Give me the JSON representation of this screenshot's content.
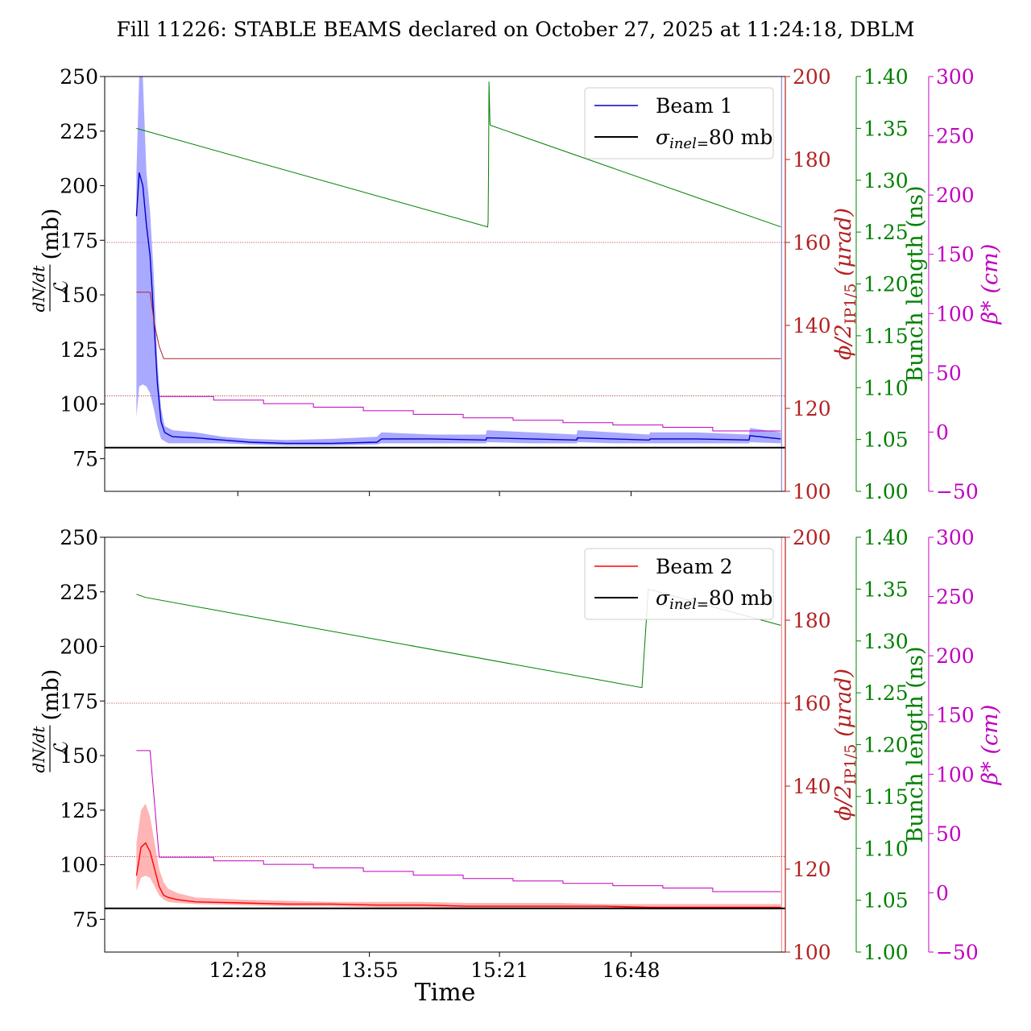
{
  "title": "Fill 11226: STABLE BEAMS declared on October 27, 2025 at 11:24:18, DBLM",
  "colors": {
    "beam1": "#0000cc",
    "beam1_band": "#8c8cff",
    "beam2": "#ff0000",
    "beam2_band": "#ff9c9c",
    "phi": "#b22222",
    "bunch": "#008000",
    "beta": "#c000c0",
    "sigma": "#000000"
  },
  "chart_data": [
    {
      "type": "line",
      "panel": "top",
      "ylabel_main": "(mb)",
      "ylabel_num": "dN/dt",
      "ylabel_den": "ℒ",
      "ylim": [
        60,
        250
      ],
      "yticks": [
        "75",
        "100",
        "125",
        "150",
        "175",
        "200",
        "225",
        "250"
      ],
      "x_range_hours": [
        11.0,
        18.5
      ],
      "xticks": [
        {
          "t": 12.4667,
          "label": ""
        },
        {
          "t": 13.9167,
          "label": ""
        },
        {
          "t": 15.35,
          "label": ""
        },
        {
          "t": 16.8,
          "label": ""
        }
      ],
      "axes": [
        {
          "key": "phi",
          "label_main": "ϕ/2",
          "label_sub": "IP1/5",
          "label_tail": " (μrad)",
          "ylim": [
            100,
            200
          ],
          "ticks": [
            "100",
            "120",
            "140",
            "160",
            "180",
            "200"
          ]
        },
        {
          "key": "bunch",
          "label": "Bunch length (ns)",
          "ylim": [
            1.0,
            1.4
          ],
          "ticks": [
            "1.00",
            "1.05",
            "1.10",
            "1.15",
            "1.20",
            "1.25",
            "1.30",
            "1.35",
            "1.40"
          ]
        },
        {
          "key": "beta",
          "label": "β* (cm)",
          "ylim": [
            -50,
            300
          ],
          "ticks": [
            "−50",
            "0",
            "50",
            "100",
            "150",
            "200",
            "250",
            "300"
          ]
        }
      ],
      "legend": [
        "Beam 1",
        "σinel=80 mb"
      ],
      "sigma_inel": 80,
      "phi_ref_lines": [
        160,
        123
      ],
      "series": [
        {
          "name": "Beam 1",
          "axis": "main",
          "role": "beam",
          "x": [
            11.35,
            11.38,
            11.42,
            11.46,
            11.5,
            11.54,
            11.58,
            11.62,
            11.66,
            11.7,
            11.75,
            12.0,
            12.3,
            12.6,
            13.0,
            13.5,
            14.0,
            14.05,
            14.6,
            15.2,
            15.21,
            15.7,
            16.2,
            16.21,
            16.6,
            17.0,
            17.01,
            17.5,
            18.1,
            18.11,
            18.45
          ],
          "values": [
            186,
            206,
            200,
            182,
            168,
            140,
            110,
            92,
            87,
            86,
            85,
            84.5,
            83.5,
            82.5,
            82,
            82,
            82.5,
            84,
            84,
            83.5,
            84.5,
            84,
            83.5,
            84.5,
            84,
            83.5,
            84,
            84,
            83.5,
            85.5,
            84
          ],
          "band_up": [
            206,
            250,
            250,
            206,
            188,
            160,
            120,
            98,
            90,
            89,
            88,
            87,
            85,
            84,
            83.5,
            84,
            85,
            87,
            86,
            86,
            88,
            87,
            86,
            88,
            87,
            86,
            87,
            87,
            86,
            89,
            87
          ],
          "band_lo": [
            94,
            108,
            109,
            108,
            105,
            98,
            90,
            84,
            83,
            82,
            82,
            82,
            82,
            81.5,
            81,
            81,
            81.5,
            82,
            82,
            82,
            82.5,
            82,
            82,
            82.5,
            82,
            82,
            82,
            82,
            82,
            82.5,
            82
          ]
        },
        {
          "name": "",
          "axis": "bunch",
          "role": "line",
          "x": [
            11.35,
            15.22,
            15.225,
            15.23,
            15.235,
            15.245,
            15.25,
            18.45
          ],
          "values": [
            1.35,
            1.255,
            1.26,
            1.315,
            1.395,
            1.355,
            1.353,
            1.255
          ]
        },
        {
          "name": "",
          "axis": "phi",
          "role": "line",
          "x": [
            11.35,
            11.5,
            11.55,
            11.6,
            11.65,
            18.45
          ],
          "values": [
            148,
            148,
            140,
            135,
            132,
            132
          ]
        },
        {
          "name": "",
          "axis": "beta",
          "role": "step",
          "x": [
            11.6,
            12.2,
            12.2,
            12.75,
            12.75,
            13.3,
            13.3,
            13.85,
            13.85,
            14.4,
            14.4,
            14.95,
            14.95,
            15.5,
            15.5,
            16.05,
            16.05,
            16.6,
            16.6,
            17.15,
            17.15,
            17.7,
            17.7,
            18.45
          ],
          "values": [
            30,
            30,
            27,
            27,
            24,
            24,
            21,
            21,
            18,
            18,
            15,
            15,
            12,
            12,
            10,
            10,
            8,
            8,
            6,
            6,
            4,
            4,
            1,
            1
          ]
        }
      ]
    },
    {
      "type": "line",
      "panel": "bottom",
      "ylabel_main": "(mb)",
      "ylabel_num": "dN/dt",
      "ylabel_den": "ℒ",
      "ylim": [
        60,
        250
      ],
      "yticks": [
        "75",
        "100",
        "125",
        "150",
        "175",
        "200",
        "225",
        "250"
      ],
      "x_range_hours": [
        11.0,
        18.5
      ],
      "xlabel": "Time",
      "xticks": [
        {
          "t": 12.4667,
          "label": "12:28"
        },
        {
          "t": 13.9167,
          "label": "13:55"
        },
        {
          "t": 15.35,
          "label": "15:21"
        },
        {
          "t": 16.8,
          "label": "16:48"
        }
      ],
      "axes": [
        {
          "key": "phi",
          "label_main": "ϕ/2",
          "label_sub": "IP1/5",
          "label_tail": " (μrad)",
          "ylim": [
            100,
            200
          ],
          "ticks": [
            "100",
            "120",
            "140",
            "160",
            "180",
            "200"
          ]
        },
        {
          "key": "bunch",
          "label": "Bunch length (ns)",
          "ylim": [
            1.0,
            1.4
          ],
          "ticks": [
            "1.00",
            "1.05",
            "1.10",
            "1.15",
            "1.20",
            "1.25",
            "1.30",
            "1.35",
            "1.40"
          ]
        },
        {
          "key": "beta",
          "label": "β* (cm)",
          "ylim": [
            -50,
            300
          ],
          "ticks": [
            "−50",
            "0",
            "50",
            "100",
            "150",
            "200",
            "250",
            "300"
          ]
        }
      ],
      "legend": [
        "Beam 2",
        "σinel=80 mb"
      ],
      "sigma_inel": 80,
      "phi_ref_lines": [
        160,
        123
      ],
      "series": [
        {
          "name": "Beam 2",
          "axis": "main",
          "role": "beam",
          "x": [
            11.35,
            11.4,
            11.45,
            11.5,
            11.55,
            11.6,
            11.65,
            11.7,
            11.8,
            12.0,
            12.5,
            13.0,
            13.5,
            14.0,
            14.5,
            15.0,
            15.5,
            16.0,
            16.5,
            17.0,
            17.5,
            18.0,
            18.45
          ],
          "values": [
            95,
            108,
            110,
            106,
            98,
            90,
            86,
            85,
            84,
            83,
            82.5,
            82,
            82,
            81.5,
            81.5,
            81,
            81,
            81,
            81,
            80.5,
            80.5,
            80.5,
            80.5
          ],
          "band_up": [
            110,
            125,
            128,
            122,
            110,
            98,
            92,
            89,
            87,
            85,
            84,
            83.5,
            83,
            83,
            83,
            82.5,
            82.5,
            82.5,
            82,
            82,
            82,
            82,
            82
          ],
          "band_lo": [
            88,
            94,
            95,
            94,
            90,
            86,
            84,
            83,
            82.5,
            82,
            81.5,
            81,
            81,
            80.5,
            80.5,
            80,
            80,
            80,
            80,
            79.5,
            79.5,
            79.5,
            79.5
          ]
        },
        {
          "name": "",
          "axis": "bunch",
          "role": "line",
          "x": [
            11.35,
            11.45,
            16.92,
            16.99,
            18.45
          ],
          "values": [
            1.345,
            1.342,
            1.255,
            1.35,
            1.315
          ]
        },
        {
          "name": "",
          "axis": "beta",
          "role": "step",
          "x": [
            11.35,
            11.5,
            11.6,
            12.2,
            12.2,
            12.75,
            12.75,
            13.3,
            13.3,
            13.85,
            13.85,
            14.4,
            14.4,
            14.95,
            14.95,
            15.5,
            15.5,
            16.05,
            16.05,
            16.6,
            16.6,
            17.15,
            17.15,
            17.7,
            17.7,
            18.45
          ],
          "values": [
            120,
            120,
            30,
            30,
            27,
            27,
            24,
            24,
            21,
            21,
            18,
            18,
            15,
            15,
            12,
            12,
            10,
            10,
            8,
            8,
            6,
            6,
            4,
            4,
            1,
            1
          ]
        }
      ]
    }
  ]
}
